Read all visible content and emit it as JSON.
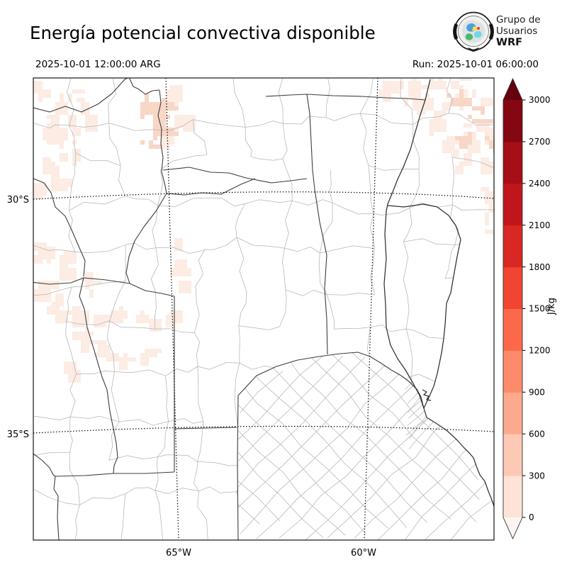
{
  "header": {
    "title": "Energía potencial convectiva disponible",
    "valid_time": "2025-10-01 12:00:00 ARG",
    "run_label": "Run: 2025-10-01 06:00:00",
    "logo": {
      "line1": "Grupo de",
      "line2": "Usuarios",
      "line3": "WRF"
    }
  },
  "map": {
    "lat_ticks": [
      {
        "label": "30°S"
      },
      {
        "label": "35°S"
      }
    ],
    "lon_ticks": [
      {
        "label": "65°W"
      },
      {
        "label": "60°W"
      }
    ]
  },
  "colorbar": {
    "unit": "J/kg",
    "tick_labels": [
      "0",
      "300",
      "600",
      "900",
      "1200",
      "1500",
      "1800",
      "2100",
      "2400",
      "2700",
      "3000"
    ],
    "segment_colors_bottom_to_top": [
      "#fee3d7",
      "#fdc9b4",
      "#fcaa8e",
      "#fc8a6b",
      "#fb694a",
      "#f14432",
      "#d92723",
      "#c0161b",
      "#a50f15",
      "#840711"
    ],
    "under_arrow_color": "#fff5f0",
    "over_arrow_color": "#67000d"
  },
  "palette": {
    "pink_light": "#fcece4",
    "pink_mid": "#f8d7c6",
    "dept_line": "#b4b4b4",
    "province_line": "#3d3d3d",
    "water_line": "#2f2f2f",
    "grid_line": "#000000"
  },
  "chart_data": {
    "type": "heatmap",
    "title": "Energía potencial convectiva disponible",
    "unit": "J/kg",
    "valid_time": "2025-10-01 12:00:00 ARG",
    "run_time": "2025-10-01 06:00:00",
    "colorbar_ticks": [
      0,
      300,
      600,
      900,
      1200,
      1500,
      1800,
      2100,
      2400,
      2700,
      3000
    ],
    "colorbar_range": [
      0,
      3000
    ],
    "lat_gridlines_deg_S": [
      30,
      35
    ],
    "lon_gridlines_deg_W": [
      65,
      60
    ],
    "shaded_field_note": "Only low values (0-300 J/kg band, pale pink) appear: northwest corner, Tucumán area, west-central (San Juan/La Rioja/Mendoza border), and a broad pale area over the northeast (Corrientes) and the eastern edge; rest of domain near zero (white)."
  }
}
